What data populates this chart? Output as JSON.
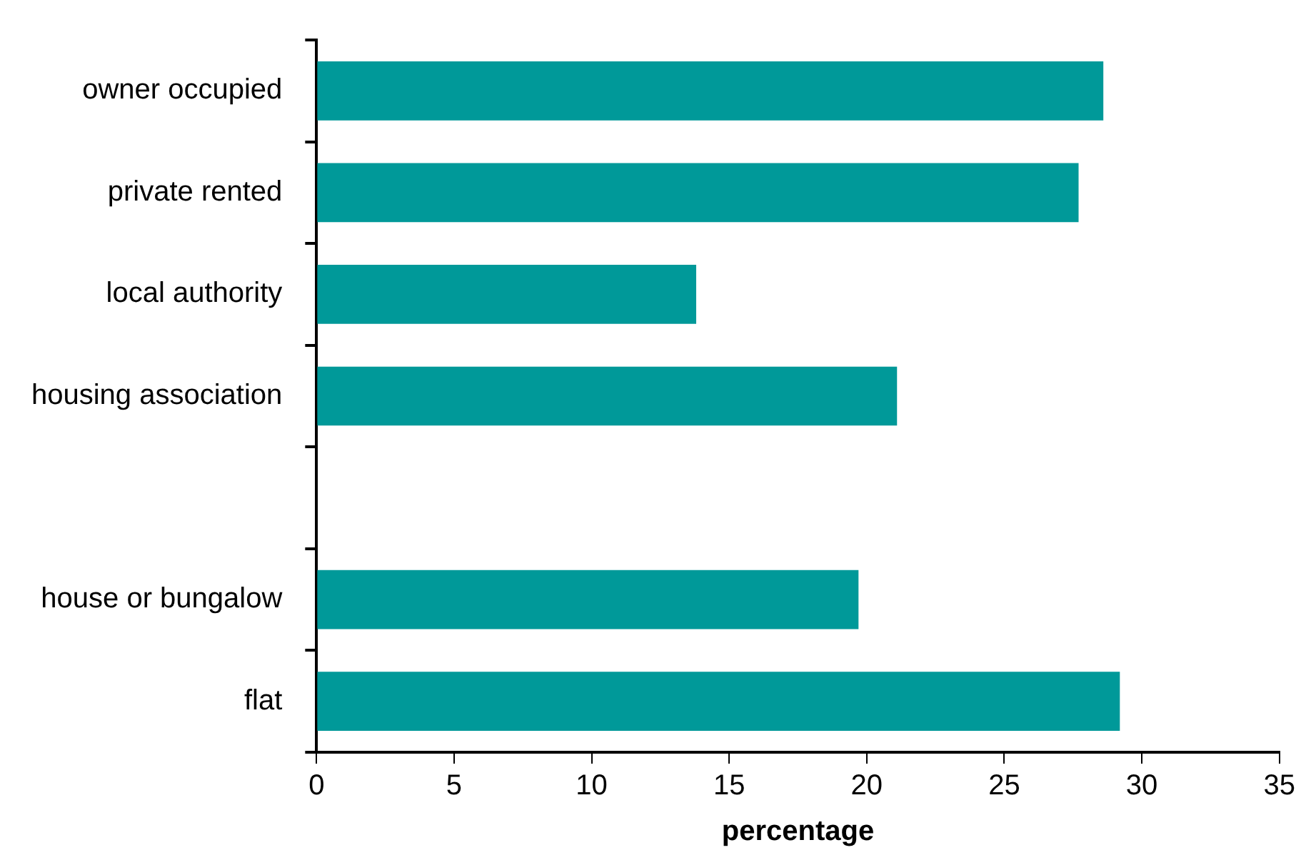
{
  "chart_data": {
    "type": "bar",
    "orientation": "horizontal",
    "xlabel": "percentage",
    "categories": [
      "owner occupied",
      "private rented",
      "local authority",
      "housing association",
      null,
      "house or bungalow",
      "flat"
    ],
    "values": [
      28.6,
      27.7,
      13.8,
      21.1,
      null,
      19.7,
      29.2
    ],
    "color": "#009999",
    "xlim": [
      0,
      35
    ],
    "xticks": [
      0,
      5,
      10,
      15,
      20,
      25,
      30,
      35
    ],
    "grid": false,
    "legend": false
  }
}
